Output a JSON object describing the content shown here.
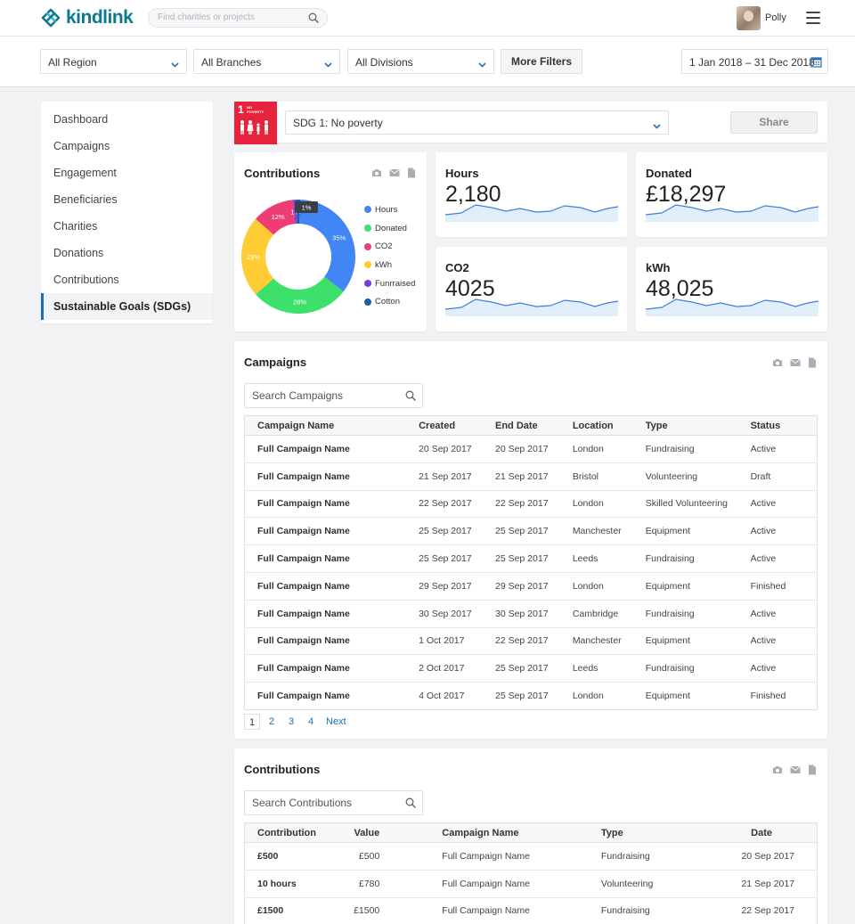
{
  "header": {
    "logo_text": "kindlink",
    "search_placeholder": "Find charities or projects",
    "user_name": "Polly"
  },
  "filters": {
    "region": "All Region",
    "branches": "All Branches",
    "divisions": "All Divisions",
    "more_filters": "More Filters",
    "date_range": "1 Jan 2018 – 31 Dec 2018"
  },
  "sidebar": {
    "items": [
      {
        "label": "Dashboard"
      },
      {
        "label": "Campaigns"
      },
      {
        "label": "Engagement"
      },
      {
        "label": "Beneficiaries"
      },
      {
        "label": "Charities"
      },
      {
        "label": "Donations"
      },
      {
        "label": "Contributions"
      },
      {
        "label": "Sustainable Goals (SDGs)"
      }
    ],
    "active_index": 7
  },
  "sdg": {
    "badge_number": "1",
    "badge_label_line1": "NO",
    "badge_label_line2": "POVERTY",
    "selected": "SDG 1: No poverty",
    "share_label": "Share",
    "badge_color": "#e5243b"
  },
  "contributions_card": {
    "title": "Contributions"
  },
  "stats": [
    {
      "label": "Hours",
      "value": "2,180"
    },
    {
      "label": "Donated",
      "value": "£18,297"
    },
    {
      "label": "CO2",
      "value": "4025"
    },
    {
      "label": "kWh",
      "value": "48,025"
    }
  ],
  "chart_data": {
    "type": "pie",
    "title": "Contributions",
    "slices": [
      {
        "name": "Hours",
        "value": 35,
        "color": "#4285f4",
        "label": "35%"
      },
      {
        "name": "Donated",
        "value": 28,
        "color": "#3ee06c",
        "label": "28%"
      },
      {
        "name": "kWh",
        "value": 23,
        "color": "#ffcc33",
        "label": "23%"
      },
      {
        "name": "CO2",
        "value": 12,
        "color": "#ee3d75",
        "label": "12%"
      },
      {
        "name": "Funrraised",
        "value": 1,
        "color": "#6f42e0",
        "label": "1%"
      },
      {
        "name": "Cotton",
        "value": 1,
        "color": "#1b5fa8",
        "label": ""
      }
    ],
    "legend": [
      "Hours",
      "Donated",
      "CO2",
      "kWh",
      "Funrraised",
      "Cotton"
    ],
    "legend_placement": "right",
    "donut": true
  },
  "campaigns": {
    "title": "Campaigns",
    "search_placeholder": "Search Campaigns",
    "columns": [
      "Campaign Name",
      "Created",
      "End Date",
      "Location",
      "Type",
      "Status"
    ],
    "rows": [
      [
        "Full Campaign Name",
        "20 Sep 2017",
        "20 Sep 2017",
        "London",
        "Fundraising",
        "Active"
      ],
      [
        "Full Campaign Name",
        "21 Sep 2017",
        "21 Sep 2017",
        "Bristol",
        "Volunteering",
        "Draft"
      ],
      [
        "Full Campaign Name",
        "22 Sep 2017",
        "22 Sep 2017",
        "London",
        "Skilled Volunteering",
        "Active"
      ],
      [
        "Full Campaign Name",
        "25 Sep 2017",
        "25 Sep 2017",
        "Manchester",
        "Equipment",
        "Active"
      ],
      [
        "Full Campaign Name",
        "25 Sep 2017",
        "25 Sep 2017",
        "Leeds",
        "Fundraising",
        "Active"
      ],
      [
        "Full Campaign Name",
        "29 Sep 2017",
        "29 Sep 2017",
        "London",
        "Equipment",
        "Finished"
      ],
      [
        "Full Campaign Name",
        "30 Sep 2017",
        "30 Sep 2017",
        "Cambridge",
        "Fundraising",
        "Active"
      ],
      [
        "Full Campaign Name",
        "1 Oct 2017",
        "22 Sep 2017",
        "Manchester",
        "Equipment",
        "Active"
      ],
      [
        "Full Campaign Name",
        "2 Oct 2017",
        "25 Sep 2017",
        "Leeds",
        "Fundraising",
        "Active"
      ],
      [
        "Full Campaign Name",
        "4 Oct 2017",
        "25 Sep 2017",
        "London",
        "Equipment",
        "Finished"
      ]
    ],
    "pages": [
      "1",
      "2",
      "3",
      "4"
    ],
    "current_page": "1",
    "next_label": "Next"
  },
  "contributions_table": {
    "title": "Contributions",
    "search_placeholder": "Search Contributions",
    "columns": [
      "Contribution",
      "Value",
      "Campaign Name",
      "Type",
      "Date"
    ],
    "rows": [
      [
        "£500",
        "£500",
        "Full Campaign Name",
        "Fundraising",
        "20 Sep 2017"
      ],
      [
        "10 hours",
        "£780",
        "Full Campaign Name",
        "Volunteering",
        "21 Sep 2017"
      ],
      [
        "£1500",
        "£1500",
        "Full Campaign Name",
        "Fundraising",
        "22 Sep 2017"
      ]
    ]
  }
}
